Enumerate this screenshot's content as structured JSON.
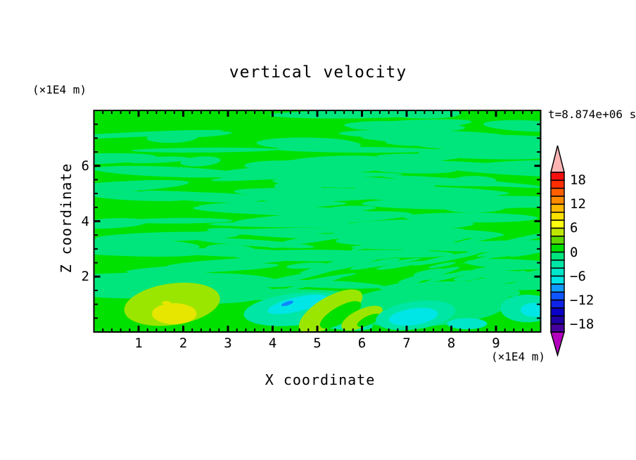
{
  "chart_data": {
    "type": "heatmap",
    "subtype": "filled-contour",
    "title": "vertical velocity",
    "time_label": "t=8.874e+06 s",
    "xlabel": "X coordinate",
    "ylabel": "Z coordinate",
    "x_unit_label": "(×1E4 m)",
    "z_unit_label": "(×1E4 m)",
    "xlim": [
      0,
      10
    ],
    "zlim": [
      0,
      8
    ],
    "grid": false,
    "x_major_ticks": [
      {
        "v": 1,
        "label": "1"
      },
      {
        "v": 2,
        "label": "2"
      },
      {
        "v": 3,
        "label": "3"
      },
      {
        "v": 4,
        "label": "4"
      },
      {
        "v": 5,
        "label": "5"
      },
      {
        "v": 6,
        "label": "6"
      },
      {
        "v": 7,
        "label": "7"
      },
      {
        "v": 8,
        "label": "8"
      },
      {
        "v": 9,
        "label": "9"
      }
    ],
    "x_minor_step": 0.2,
    "z_major_ticks": [
      {
        "v": 2,
        "label": "2"
      },
      {
        "v": 4,
        "label": "4"
      },
      {
        "v": 6,
        "label": "6"
      }
    ],
    "z_minor_step": 0.5,
    "colorbar": {
      "position": "right",
      "value_min": -20,
      "value_max": 20,
      "segment_step": 2,
      "segments_top_to_bottom": [
        "#F50F0F",
        "#FF2D00",
        "#FF5F00",
        "#FF8C00",
        "#FFB900",
        "#FFE100",
        "#FFFF0F",
        "#BEE600",
        "#5FD700",
        "#00E100",
        "#00E67D",
        "#00E6A5",
        "#00E6C8",
        "#00E6E6",
        "#0F9BFF",
        "#0F55FF",
        "#0F23E6",
        "#0A00C8",
        "#1E00A5",
        "#46009B"
      ],
      "over_color": "#FFB4B4",
      "under_color": "#B400BE",
      "tick_labels": [
        {
          "v": 18,
          "label": "18"
        },
        {
          "v": 12,
          "label": "12"
        },
        {
          "v": 6,
          "label": "6"
        },
        {
          "v": 0,
          "label": "0"
        },
        {
          "v": -6,
          "label": "−6"
        },
        {
          "v": -12,
          "label": "−12"
        },
        {
          "v": -18,
          "label": "−18"
        }
      ]
    },
    "field": {
      "base_color": "#00E100",
      "streak_color": "#00E67D",
      "textures": [
        {
          "name": "broad-horizontal-streaks",
          "color": "#00E67D",
          "seed": 7,
          "count": 115,
          "x_range": [
            -0.3,
            10.3
          ],
          "z_range": [
            1.25,
            7.95
          ],
          "rx_range": [
            0.45,
            2.1
          ],
          "rz_range": [
            0.08,
            0.21
          ],
          "rot_range": [
            -4,
            4
          ]
        },
        {
          "name": "fine-diagonal-streaks",
          "color": "#00E67D",
          "seed": 23,
          "count": 42,
          "x_range": [
            4.3,
            10.1
          ],
          "z_range": [
            1.6,
            3.4
          ],
          "rx_range": [
            0.3,
            1.0
          ],
          "rz_range": [
            0.05,
            0.11
          ],
          "rot_range": [
            -15,
            -8
          ]
        },
        {
          "name": "low-band-streaks",
          "color": "#00E67D",
          "seed": 41,
          "count": 10,
          "x_range": [
            0.0,
            10.0
          ],
          "z_range": [
            1.0,
            1.5
          ],
          "rx_range": [
            0.5,
            1.2
          ],
          "rz_range": [
            0.07,
            0.13
          ],
          "rot_range": [
            -5,
            5
          ]
        }
      ],
      "features": [
        {
          "name": "spring-region-right",
          "x": 7.4,
          "z": 0.95,
          "rx": 1.9,
          "rz": 0.75,
          "rot": -3,
          "color": "#00E67D"
        },
        {
          "name": "spring-patch-mid",
          "x": 3.1,
          "z": 1.35,
          "rx": 0.95,
          "rz": 0.3,
          "rot": -4,
          "color": "#00E67D"
        },
        {
          "name": "spring-patch-left",
          "x": 0.5,
          "z": 1.5,
          "rx": 0.7,
          "rz": 0.25,
          "rot": 5,
          "color": "#00E67D"
        },
        {
          "name": "yellowgreen-blob-left",
          "x": 1.75,
          "z": 1.0,
          "rx": 1.08,
          "rz": 0.75,
          "rot": -8,
          "color": "#9BE600"
        },
        {
          "name": "yellow-core-left",
          "x": 1.8,
          "z": 0.66,
          "rx": 0.5,
          "rz": 0.38,
          "rot": 0,
          "color": "#E6E600"
        },
        {
          "name": "yellow-dot-left",
          "x": 1.62,
          "z": 1.05,
          "rx": 0.1,
          "rz": 0.07,
          "rot": 0,
          "color": "#E6E600"
        },
        {
          "name": "aqua-region-mid",
          "x": 4.55,
          "z": 0.82,
          "rx": 1.2,
          "rz": 0.58,
          "rot": -6,
          "color": "#00E6A5"
        },
        {
          "name": "aqua-tail-mid",
          "x": 5.35,
          "z": 0.4,
          "rx": 0.9,
          "rz": 0.28,
          "rot": 8,
          "color": "#00E6A5"
        },
        {
          "name": "cyan-patch-mid",
          "x": 4.55,
          "z": 1.0,
          "rx": 0.68,
          "rz": 0.26,
          "rot": -13,
          "color": "#00E6E6"
        },
        {
          "name": "blue-dot-mid",
          "x": 4.33,
          "z": 1.03,
          "rx": 0.14,
          "rz": 0.07,
          "rot": -18,
          "color": "#0F87FF"
        },
        {
          "name": "chartreuse-crescent-1",
          "x": 5.3,
          "z": 0.75,
          "rx": 0.8,
          "rz": 0.52,
          "rot": -30,
          "color": "#9BE600"
        },
        {
          "name": "crescent-1-inner-green",
          "x": 5.52,
          "z": 0.62,
          "rx": 0.52,
          "rz": 0.3,
          "rot": -30,
          "color": "#00E100"
        },
        {
          "name": "chartreuse-crescent-2",
          "x": 6.0,
          "z": 0.5,
          "rx": 0.5,
          "rz": 0.32,
          "rot": -25,
          "color": "#9BE600"
        },
        {
          "name": "crescent-2-inner-green",
          "x": 6.15,
          "z": 0.42,
          "rx": 0.28,
          "rz": 0.16,
          "rot": -25,
          "color": "#00E100"
        },
        {
          "name": "aqua-region-right",
          "x": 7.2,
          "z": 0.6,
          "rx": 0.9,
          "rz": 0.5,
          "rot": -8,
          "color": "#00E6A5"
        },
        {
          "name": "cyan-blob-right",
          "x": 7.15,
          "z": 0.55,
          "rx": 0.55,
          "rz": 0.3,
          "rot": -8,
          "color": "#00E6E6"
        },
        {
          "name": "turquoise-patch-right",
          "x": 8.35,
          "z": 0.3,
          "rx": 0.45,
          "rz": 0.2,
          "rot": 0,
          "color": "#00E6C8"
        },
        {
          "name": "aqua-far-right",
          "x": 9.7,
          "z": 0.85,
          "rx": 0.6,
          "rz": 0.5,
          "rot": 0,
          "color": "#00E6A5"
        },
        {
          "name": "cyan-far-right",
          "x": 9.85,
          "z": 0.8,
          "rx": 0.3,
          "rz": 0.25,
          "rot": 0,
          "color": "#00E6E6"
        }
      ]
    }
  }
}
